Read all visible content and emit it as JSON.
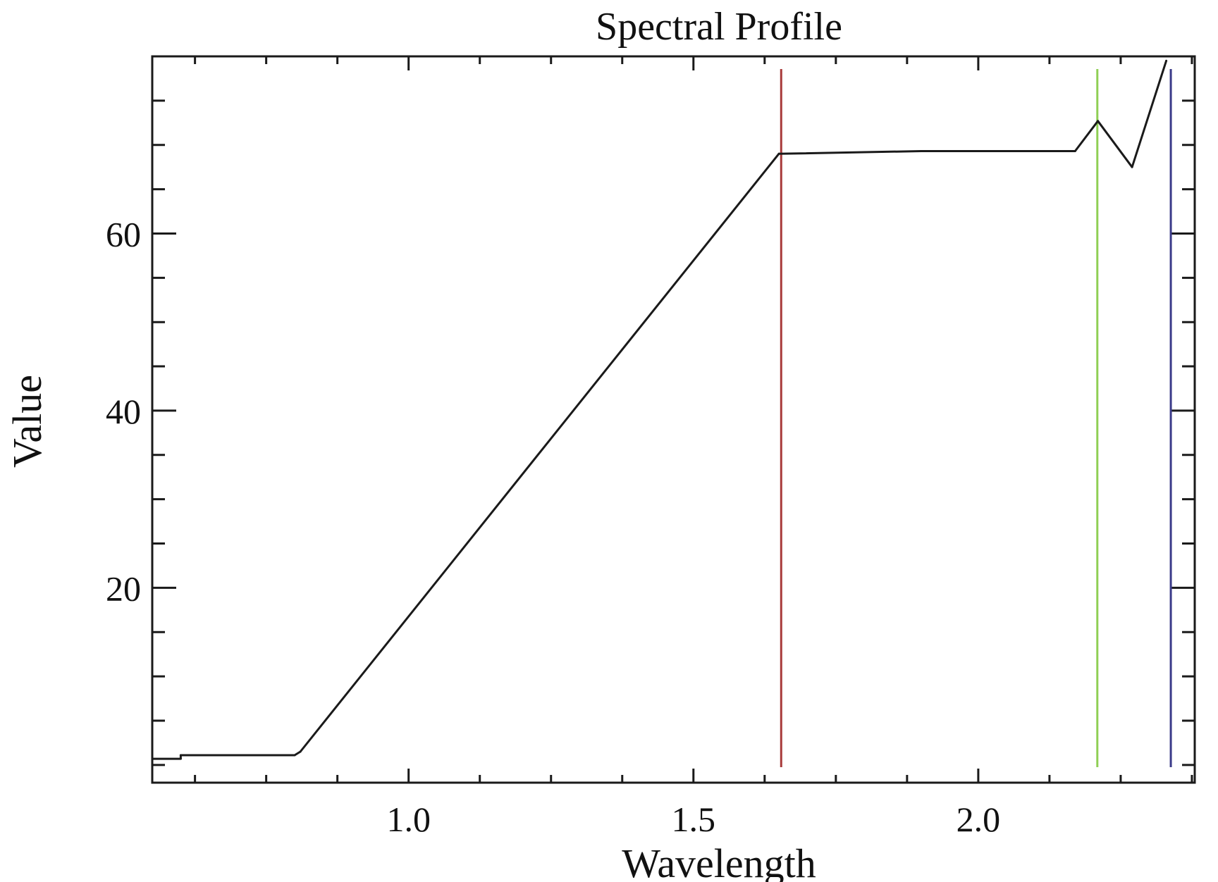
{
  "chart_data": {
    "type": "line",
    "title": "Spectral Profile",
    "xlabel": "Wavelength",
    "ylabel": "Value",
    "xlim": [
      0.55,
      2.38
    ],
    "ylim": [
      -2,
      80
    ],
    "x_ticks": [
      {
        "value": 1.0,
        "label": "1.0"
      },
      {
        "value": 1.5,
        "label": "1.5"
      },
      {
        "value": 2.0,
        "label": "2.0"
      }
    ],
    "y_ticks": [
      {
        "value": 20,
        "label": "20"
      },
      {
        "value": 40,
        "label": "40"
      },
      {
        "value": 60,
        "label": "60"
      }
    ],
    "x_minor_step": 0.125,
    "y_minor_step": 5,
    "grid": false,
    "series": [
      {
        "color": "#1a1a1a",
        "x": [
          0.55,
          0.6,
          0.6,
          0.8,
          0.81,
          1.65,
          1.9,
          2.17,
          2.21,
          2.27,
          2.33
        ],
        "y": [
          0.7,
          0.7,
          1.1,
          1.1,
          1.5,
          69.0,
          69.3,
          69.3,
          72.7,
          67.5,
          79.5
        ]
      }
    ],
    "markers": [
      {
        "x": 1.654,
        "color": "#a83a3a"
      },
      {
        "x": 2.209,
        "color": "#8fcf55"
      },
      {
        "x": 2.338,
        "color": "#3b3b8a"
      }
    ]
  }
}
